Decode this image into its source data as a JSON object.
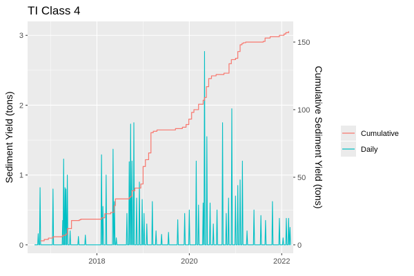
{
  "chart_data": {
    "type": "line",
    "title": "TI Class 4",
    "ylabel": "Sediment Yield (tons)",
    "y2label": "Cumulative Sediment Yield (tons)",
    "xlabel": "",
    "xlim": [
      2016.5,
      2022.25
    ],
    "ylim": [
      -0.12,
      3.2
    ],
    "y2lim": [
      -6.2,
      165.3
    ],
    "x_ticks": [
      2018,
      2020,
      2022
    ],
    "x_tick_labels": [
      "2018",
      "2020",
      "2022"
    ],
    "y_ticks": [
      0,
      1,
      2,
      3
    ],
    "y_tick_labels": [
      "0",
      "1",
      "2",
      "3"
    ],
    "y2_ticks": [
      0,
      50,
      100,
      150
    ],
    "y2_tick_labels": [
      "0",
      "50",
      "100",
      "150"
    ],
    "grid": true,
    "legend_position": "right",
    "series": [
      {
        "name": "Cumulative",
        "axis": "right",
        "color": "#F8766D",
        "x": [
          2016.78,
          2016.86,
          2016.95,
          2017.05,
          2017.26,
          2017.33,
          2017.36,
          2017.45,
          2017.62,
          2017.65,
          2018.1,
          2018.17,
          2018.3,
          2018.37,
          2018.4,
          2018.7,
          2018.73,
          2018.76,
          2018.82,
          2018.95,
          2019.0,
          2019.05,
          2019.12,
          2019.17,
          2019.22,
          2019.3,
          2019.7,
          2019.85,
          2019.93,
          2019.99,
          2020.05,
          2020.1,
          2020.2,
          2020.3,
          2020.33,
          2020.37,
          2020.42,
          2020.48,
          2020.58,
          2020.75,
          2020.86,
          2020.91,
          2021.0,
          2021.05,
          2021.1,
          2021.14,
          2021.17,
          2021.22,
          2021.6,
          2021.64,
          2021.75,
          2021.95,
          2022.05,
          2022.09,
          2022.15
        ],
        "y": [
          3,
          4,
          5,
          6,
          7,
          8,
          12,
          18,
          18.5,
          19,
          20,
          23,
          24,
          29,
          34,
          35,
          36,
          40,
          42,
          45,
          58,
          63,
          68,
          83,
          84,
          85,
          86,
          87,
          89,
          93,
          98,
          100,
          104,
          107,
          109,
          117,
          123,
          125,
          126,
          127,
          134,
          137,
          138,
          143,
          148,
          149,
          149.5,
          150,
          150.5,
          153,
          154,
          155,
          156,
          157,
          158
        ]
      },
      {
        "name": "Daily",
        "axis": "left",
        "color": "#00BFC4",
        "spikes_x": [
          2016.73,
          2016.77,
          2017.05,
          2017.26,
          2017.28,
          2017.31,
          2017.33,
          2017.36,
          2017.42,
          2017.6,
          2017.75,
          2018.1,
          2018.13,
          2018.2,
          2018.35,
          2018.38,
          2018.42,
          2018.65,
          2018.7,
          2018.73,
          2018.76,
          2018.8,
          2018.86,
          2018.92,
          2018.98,
          2019.02,
          2019.08,
          2019.2,
          2019.28,
          2019.4,
          2019.55,
          2019.75,
          2019.9,
          2020.0,
          2020.15,
          2020.2,
          2020.3,
          2020.33,
          2020.38,
          2020.45,
          2020.52,
          2020.6,
          2020.72,
          2020.8,
          2020.85,
          2020.92,
          2021.0,
          2021.05,
          2021.1,
          2021.15,
          2021.25,
          2021.4,
          2021.55,
          2021.65,
          2021.8,
          2021.95,
          2022.03,
          2022.1,
          2022.15,
          2022.18
        ],
        "spikes_y": [
          0.16,
          0.82,
          0.8,
          0.35,
          1.23,
          0.82,
          0.8,
          1.0,
          0.2,
          0.12,
          0.14,
          1.29,
          0.55,
          1.0,
          1.37,
          0.62,
          0.1,
          0.45,
          1.19,
          1.73,
          1.2,
          1.75,
          0.67,
          0.9,
          0.65,
          0.45,
          0.3,
          0.62,
          0.2,
          0.15,
          0.18,
          0.36,
          0.45,
          0.5,
          1.2,
          0.57,
          0.6,
          2.77,
          1.55,
          0.6,
          0.3,
          0.5,
          1.75,
          0.45,
          0.67,
          1.95,
          0.7,
          0.85,
          0.93,
          1.2,
          0.2,
          0.5,
          0.42,
          0.35,
          0.62,
          0.38,
          0.1,
          0.38,
          0.38,
          0.25
        ]
      }
    ]
  },
  "legend": {
    "entries": [
      {
        "label": "Cumulative",
        "color": "#F8766D"
      },
      {
        "label": "Daily",
        "color": "#00BFC4"
      }
    ]
  },
  "colors": {
    "panel_bg": "#EBEBEB",
    "grid_major": "#FFFFFF",
    "tick": "#333333"
  }
}
